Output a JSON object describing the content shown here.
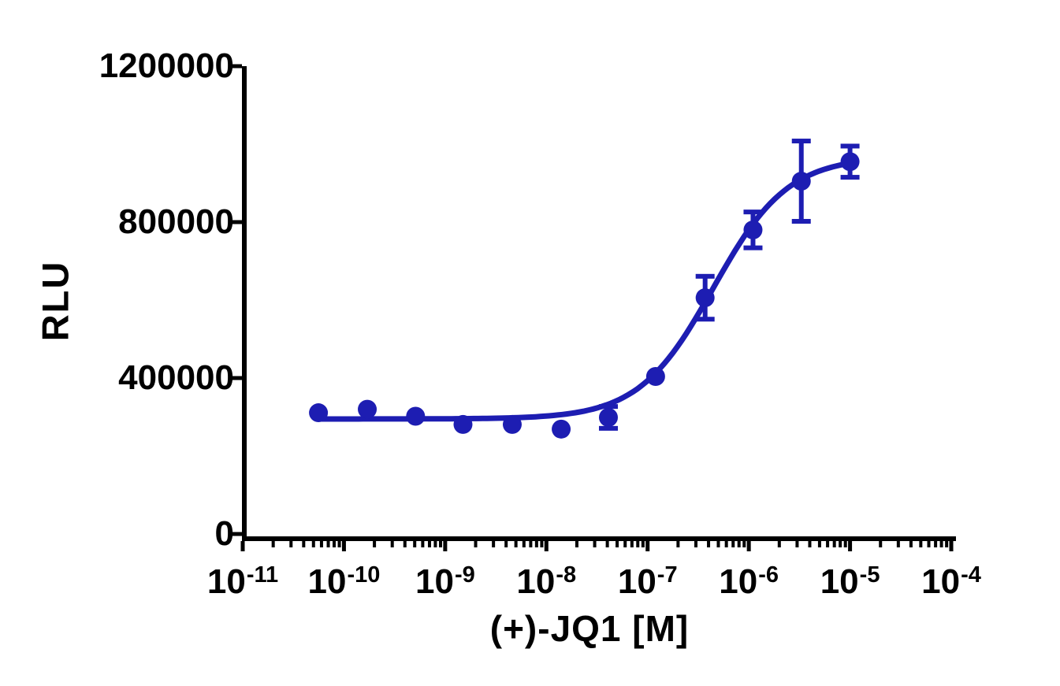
{
  "chart_data": {
    "type": "scatter",
    "title": "",
    "xlabel": "(+)-JQ1 [M]",
    "ylabel": "RLU",
    "x_scale": "log10",
    "xlim_log10": [
      -11,
      -4
    ],
    "ylim": [
      0,
      1200000
    ],
    "grid": false,
    "legend_position": "none",
    "x_tick_base": "10",
    "x_tick_exponents": [
      -11,
      -10,
      -9,
      -8,
      -7,
      -6,
      -5,
      -4
    ],
    "x_tick_exponent_labels": [
      "-11",
      "-10",
      "-9",
      "-8",
      "-7",
      "-6",
      "-5",
      "-4"
    ],
    "y_ticks": [
      0,
      400000,
      800000,
      1200000
    ],
    "y_tick_labels": [
      "0",
      "400000",
      "800000",
      "1200000"
    ],
    "axis_color": "#000000",
    "series": [
      {
        "name": "(+)-JQ1",
        "color": "#1d1db2",
        "marker": "circle",
        "points": [
          {
            "conc_M": 5.6e-11,
            "rlu": 311000,
            "sd": 0
          },
          {
            "conc_M": 1.7e-10,
            "rlu": 320000,
            "sd": 0
          },
          {
            "conc_M": 5.1e-10,
            "rlu": 302000,
            "sd": 0
          },
          {
            "conc_M": 1.5e-09,
            "rlu": 281000,
            "sd": 0
          },
          {
            "conc_M": 4.6e-09,
            "rlu": 281000,
            "sd": 0
          },
          {
            "conc_M": 1.4e-08,
            "rlu": 269000,
            "sd": 0
          },
          {
            "conc_M": 4.1e-08,
            "rlu": 299000,
            "sd": 28000
          },
          {
            "conc_M": 1.2e-07,
            "rlu": 404000,
            "sd": 0
          },
          {
            "conc_M": 3.7e-07,
            "rlu": 606000,
            "sd": 55000
          },
          {
            "conc_M": 1.1e-06,
            "rlu": 780000,
            "sd": 46000
          },
          {
            "conc_M": 3.3e-06,
            "rlu": 905000,
            "sd": 103000
          },
          {
            "conc_M": 1e-05,
            "rlu": 955000,
            "sd": 40000
          }
        ],
        "fit": {
          "model": "4PL",
          "bottom": 295000,
          "top": 968000,
          "logEC50": -6.35,
          "hill": 1.18,
          "range_log10": [
            -10.25,
            -5.0
          ]
        }
      }
    ]
  }
}
